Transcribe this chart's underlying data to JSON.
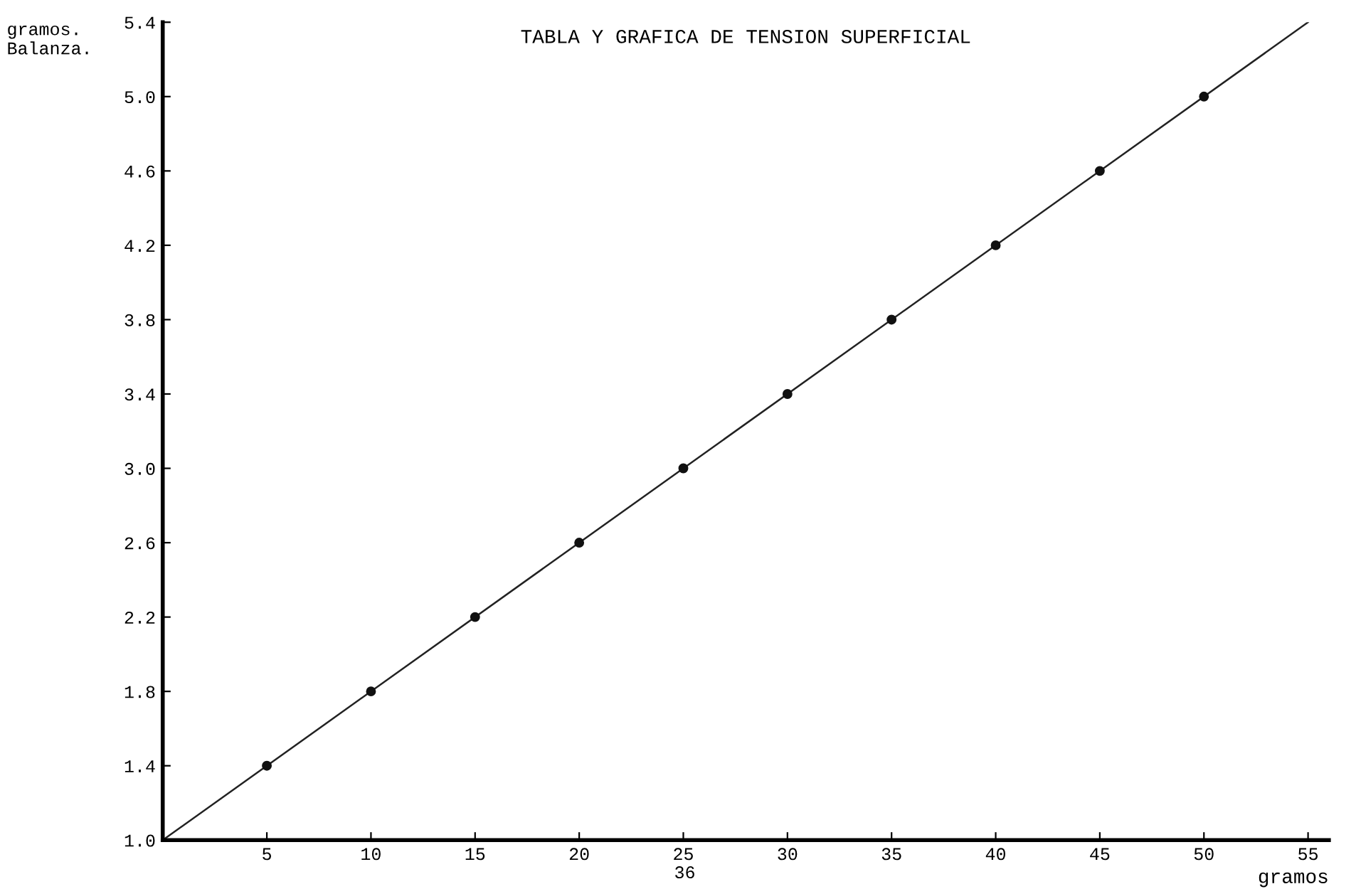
{
  "chart_data": {
    "type": "line",
    "title": "TABLA Y GRAFICA DE TENSION SUPERFICIAL",
    "xlabel": "gramos",
    "ylabel": "gramos.\nBalanza.",
    "series": [
      {
        "color": "#222222",
        "x": [
          0,
          55
        ],
        "values": [
          1.0,
          5.4
        ],
        "marker": "none"
      },
      {
        "type": "scatter",
        "color": "#111111",
        "x": [
          5,
          10,
          15,
          20,
          25,
          30,
          35,
          40,
          45,
          50
        ],
        "values": [
          1.4,
          1.8,
          2.2,
          2.6,
          3.0,
          3.4,
          3.8,
          4.2,
          4.6,
          5.0
        ],
        "marker": "circle"
      }
    ],
    "xlim": [
      0,
      56
    ],
    "xticks": [
      5,
      10,
      15,
      20,
      25,
      30,
      35,
      40,
      45,
      50,
      55
    ],
    "ylim": [
      1.0,
      5.4
    ],
    "yticks": [
      {
        "value": 1,
        "label": "1.0"
      },
      1.4,
      1.8,
      2.2,
      2.6,
      {
        "value": 3,
        "label": "3.0"
      },
      3.4,
      3.8,
      4.2,
      4.6,
      {
        "value": 5,
        "label": "5.0"
      },
      5.4
    ],
    "grid": false,
    "annotations": [
      "36"
    ]
  }
}
